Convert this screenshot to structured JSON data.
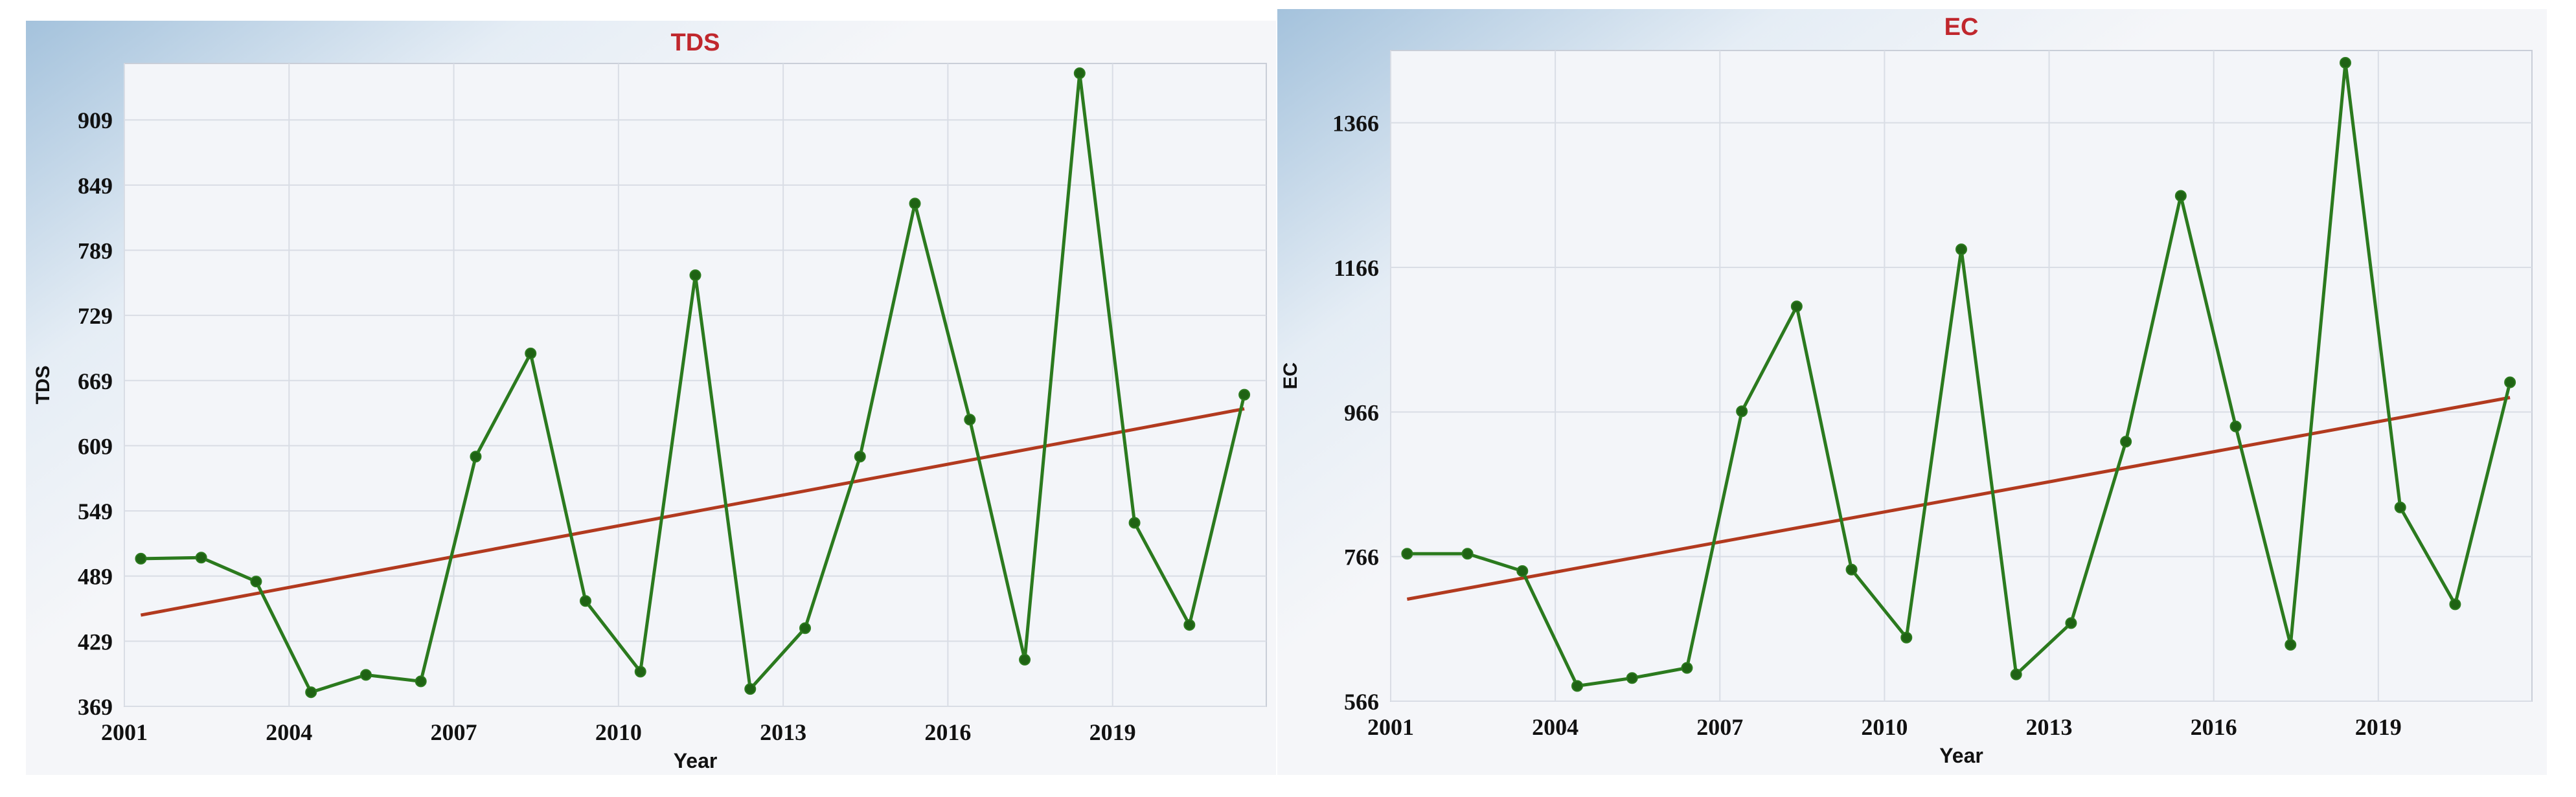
{
  "chart_data": [
    {
      "type": "line",
      "title": "TDS",
      "xlabel": "Year",
      "ylabel": "TDS",
      "xlim": [
        2001,
        2021.8
      ],
      "ylim": [
        369,
        961
      ],
      "xticks": [
        "2001",
        "2004",
        "2007",
        "2010",
        "2013",
        "2016",
        "2019"
      ],
      "yticks": [
        "369",
        "429",
        "489",
        "549",
        "609",
        "669",
        "729",
        "789",
        "849",
        "909"
      ],
      "grid": true,
      "series": [
        {
          "color": "#2b7a1e",
          "marker": "circle",
          "x": [
            2001.3,
            2002.4,
            2003.4,
            2004.4,
            2005.4,
            2006.4,
            2007.4,
            2008.4,
            2009.4,
            2010.4,
            2011.4,
            2012.4,
            2013.4,
            2014.4,
            2015.4,
            2016.4,
            2017.4,
            2018.4,
            2019.4,
            2020.4,
            2021.4
          ],
          "y": [
            505,
            506,
            484,
            382,
            398,
            392,
            599,
            694,
            466,
            401,
            766,
            385,
            441,
            599,
            832,
            633,
            412,
            952,
            538,
            444,
            656
          ]
        },
        {
          "color": "#b23a1f",
          "x": [
            2001.3,
            2021.4
          ],
          "y": [
            453,
            643
          ]
        }
      ]
    },
    {
      "type": "line",
      "title": "EC",
      "xlabel": "Year",
      "ylabel": "EC",
      "xlim": [
        2001,
        2021.8
      ],
      "ylim": [
        566,
        1466
      ],
      "xticks": [
        "2001",
        "2004",
        "2007",
        "2010",
        "2013",
        "2016",
        "2019"
      ],
      "yticks": [
        "566",
        "766",
        "966",
        "1166",
        "1366"
      ],
      "grid": true,
      "series": [
        {
          "color": "#2b7a1e",
          "marker": "circle",
          "x": [
            2001.3,
            2002.4,
            2003.4,
            2004.4,
            2005.4,
            2006.4,
            2007.4,
            2008.4,
            2009.4,
            2010.4,
            2011.4,
            2012.4,
            2013.4,
            2014.4,
            2015.4,
            2016.4,
            2017.4,
            2018.4,
            2019.4,
            2020.4,
            2021.4
          ],
          "y": [
            770,
            770,
            746,
            587,
            598,
            612,
            967,
            1112,
            748,
            654,
            1191,
            603,
            674,
            925,
            1265,
            946,
            644,
            1449,
            834,
            700,
            1007
          ]
        },
        {
          "color": "#b23a1f",
          "x": [
            2001.3,
            2021.4
          ],
          "y": [
            707,
            986
          ]
        }
      ]
    }
  ]
}
